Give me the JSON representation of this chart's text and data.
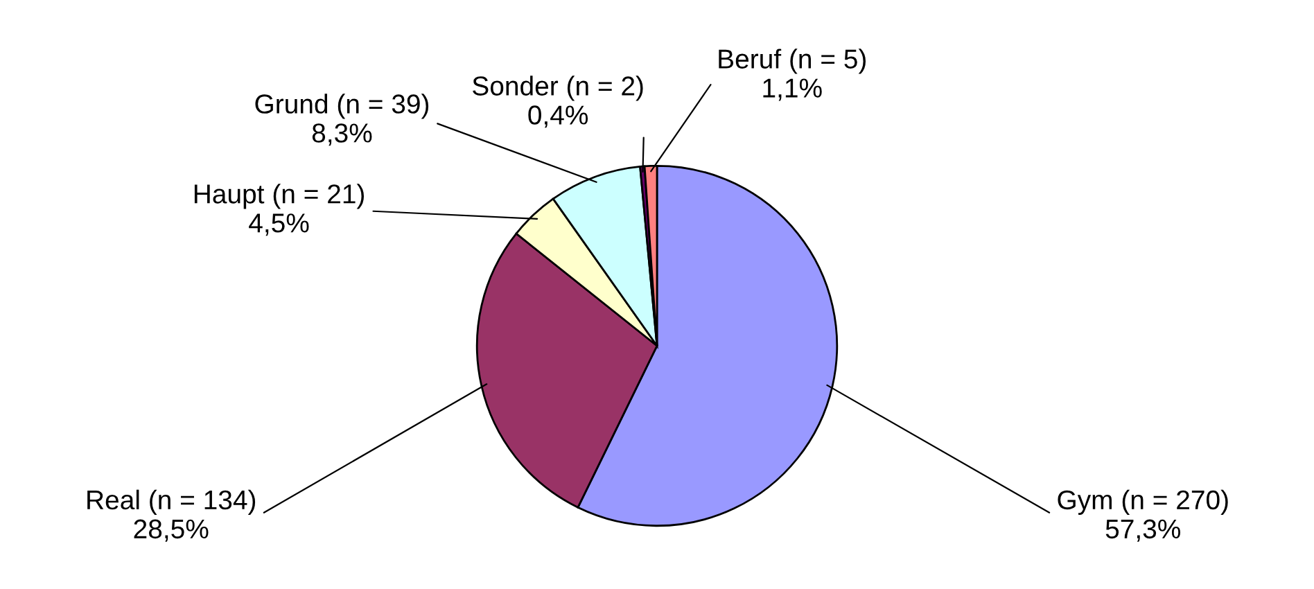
{
  "chart_data": {
    "type": "pie",
    "categories": [
      "Gym (n = 270)",
      "Real (n = 134)",
      "Haupt (n = 21)",
      "Grund (n = 39)",
      "Sonder (n = 2)",
      "Beruf (n = 5)"
    ],
    "values": [
      57.3,
      28.5,
      4.5,
      8.3,
      0.4,
      1.1
    ],
    "value_labels": [
      "57,3%",
      "28,5%",
      "4,5%",
      "8,3%",
      "0,4%",
      "1,1%"
    ],
    "colors": [
      "#9999ff",
      "#993366",
      "#ffffcc",
      "#ccffff",
      "#660066",
      "#ff8080"
    ],
    "legend": false
  }
}
